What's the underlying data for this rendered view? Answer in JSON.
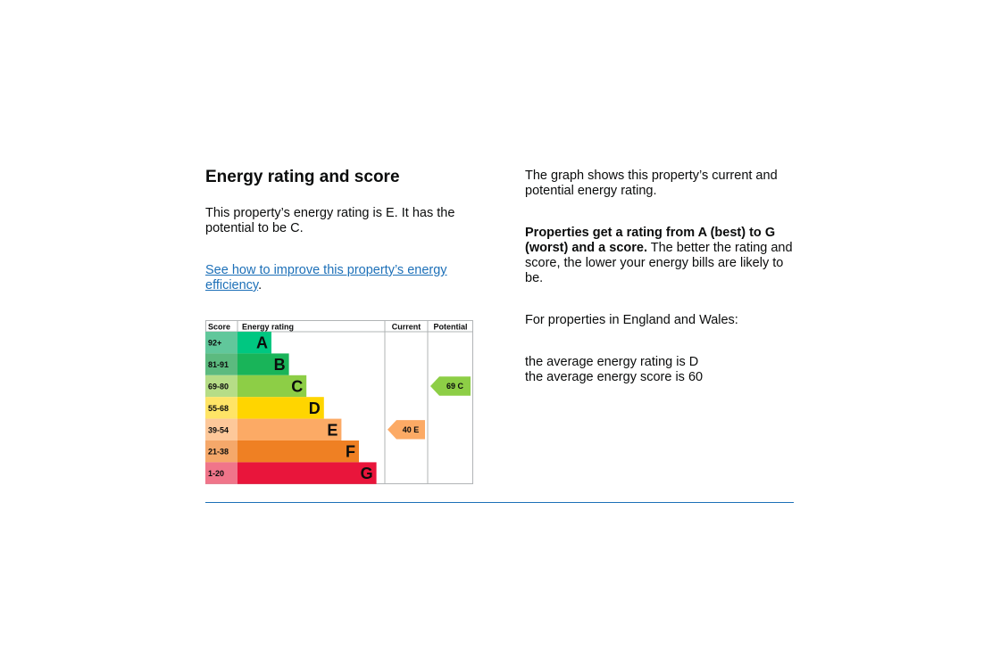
{
  "heading": "Energy rating and score",
  "intro": "This property’s energy rating is E. It has the potential to be C.",
  "improve_link": "See how to improve this property’s energy efficiency",
  "improve_link_suffix": ".",
  "graph_desc": "The graph shows this property’s current and potential energy rating.",
  "rating_bold": "Properties get a rating from A (best) to G (worst) and a score.",
  "rating_rest": " The better the rating and score, the lower your energy bills are likely to be.",
  "region_text": "For properties in England and Wales:",
  "avg_rating": "the average energy rating is D",
  "avg_score": "the average energy score is 60",
  "chart_data": {
    "type": "table",
    "headers": {
      "score": "Score",
      "rating": "Energy rating",
      "current": "Current",
      "potential": "Potential"
    },
    "bands": [
      {
        "range": "92+",
        "letter": "A",
        "color": "#00c781",
        "score_bg": "#61c79b"
      },
      {
        "range": "81-91",
        "letter": "B",
        "color": "#19b459",
        "score_bg": "#5cba7f"
      },
      {
        "range": "69-80",
        "letter": "C",
        "color": "#8dce46",
        "score_bg": "#b6dd87"
      },
      {
        "range": "55-68",
        "letter": "D",
        "color": "#ffd500",
        "score_bg": "#ffe466"
      },
      {
        "range": "39-54",
        "letter": "E",
        "color": "#fcaa65",
        "score_bg": "#fdc89a"
      },
      {
        "range": "21-38",
        "letter": "F",
        "color": "#ef8023",
        "score_bg": "#f5a86a"
      },
      {
        "range": "1-20",
        "letter": "G",
        "color": "#e9153b",
        "score_bg": "#f0758a"
      }
    ],
    "current": {
      "score": 40,
      "letter": "E",
      "label": "40  E",
      "color": "#fcaa65"
    },
    "potential": {
      "score": 69,
      "letter": "C",
      "label": "69  C",
      "color": "#8dce46"
    }
  }
}
